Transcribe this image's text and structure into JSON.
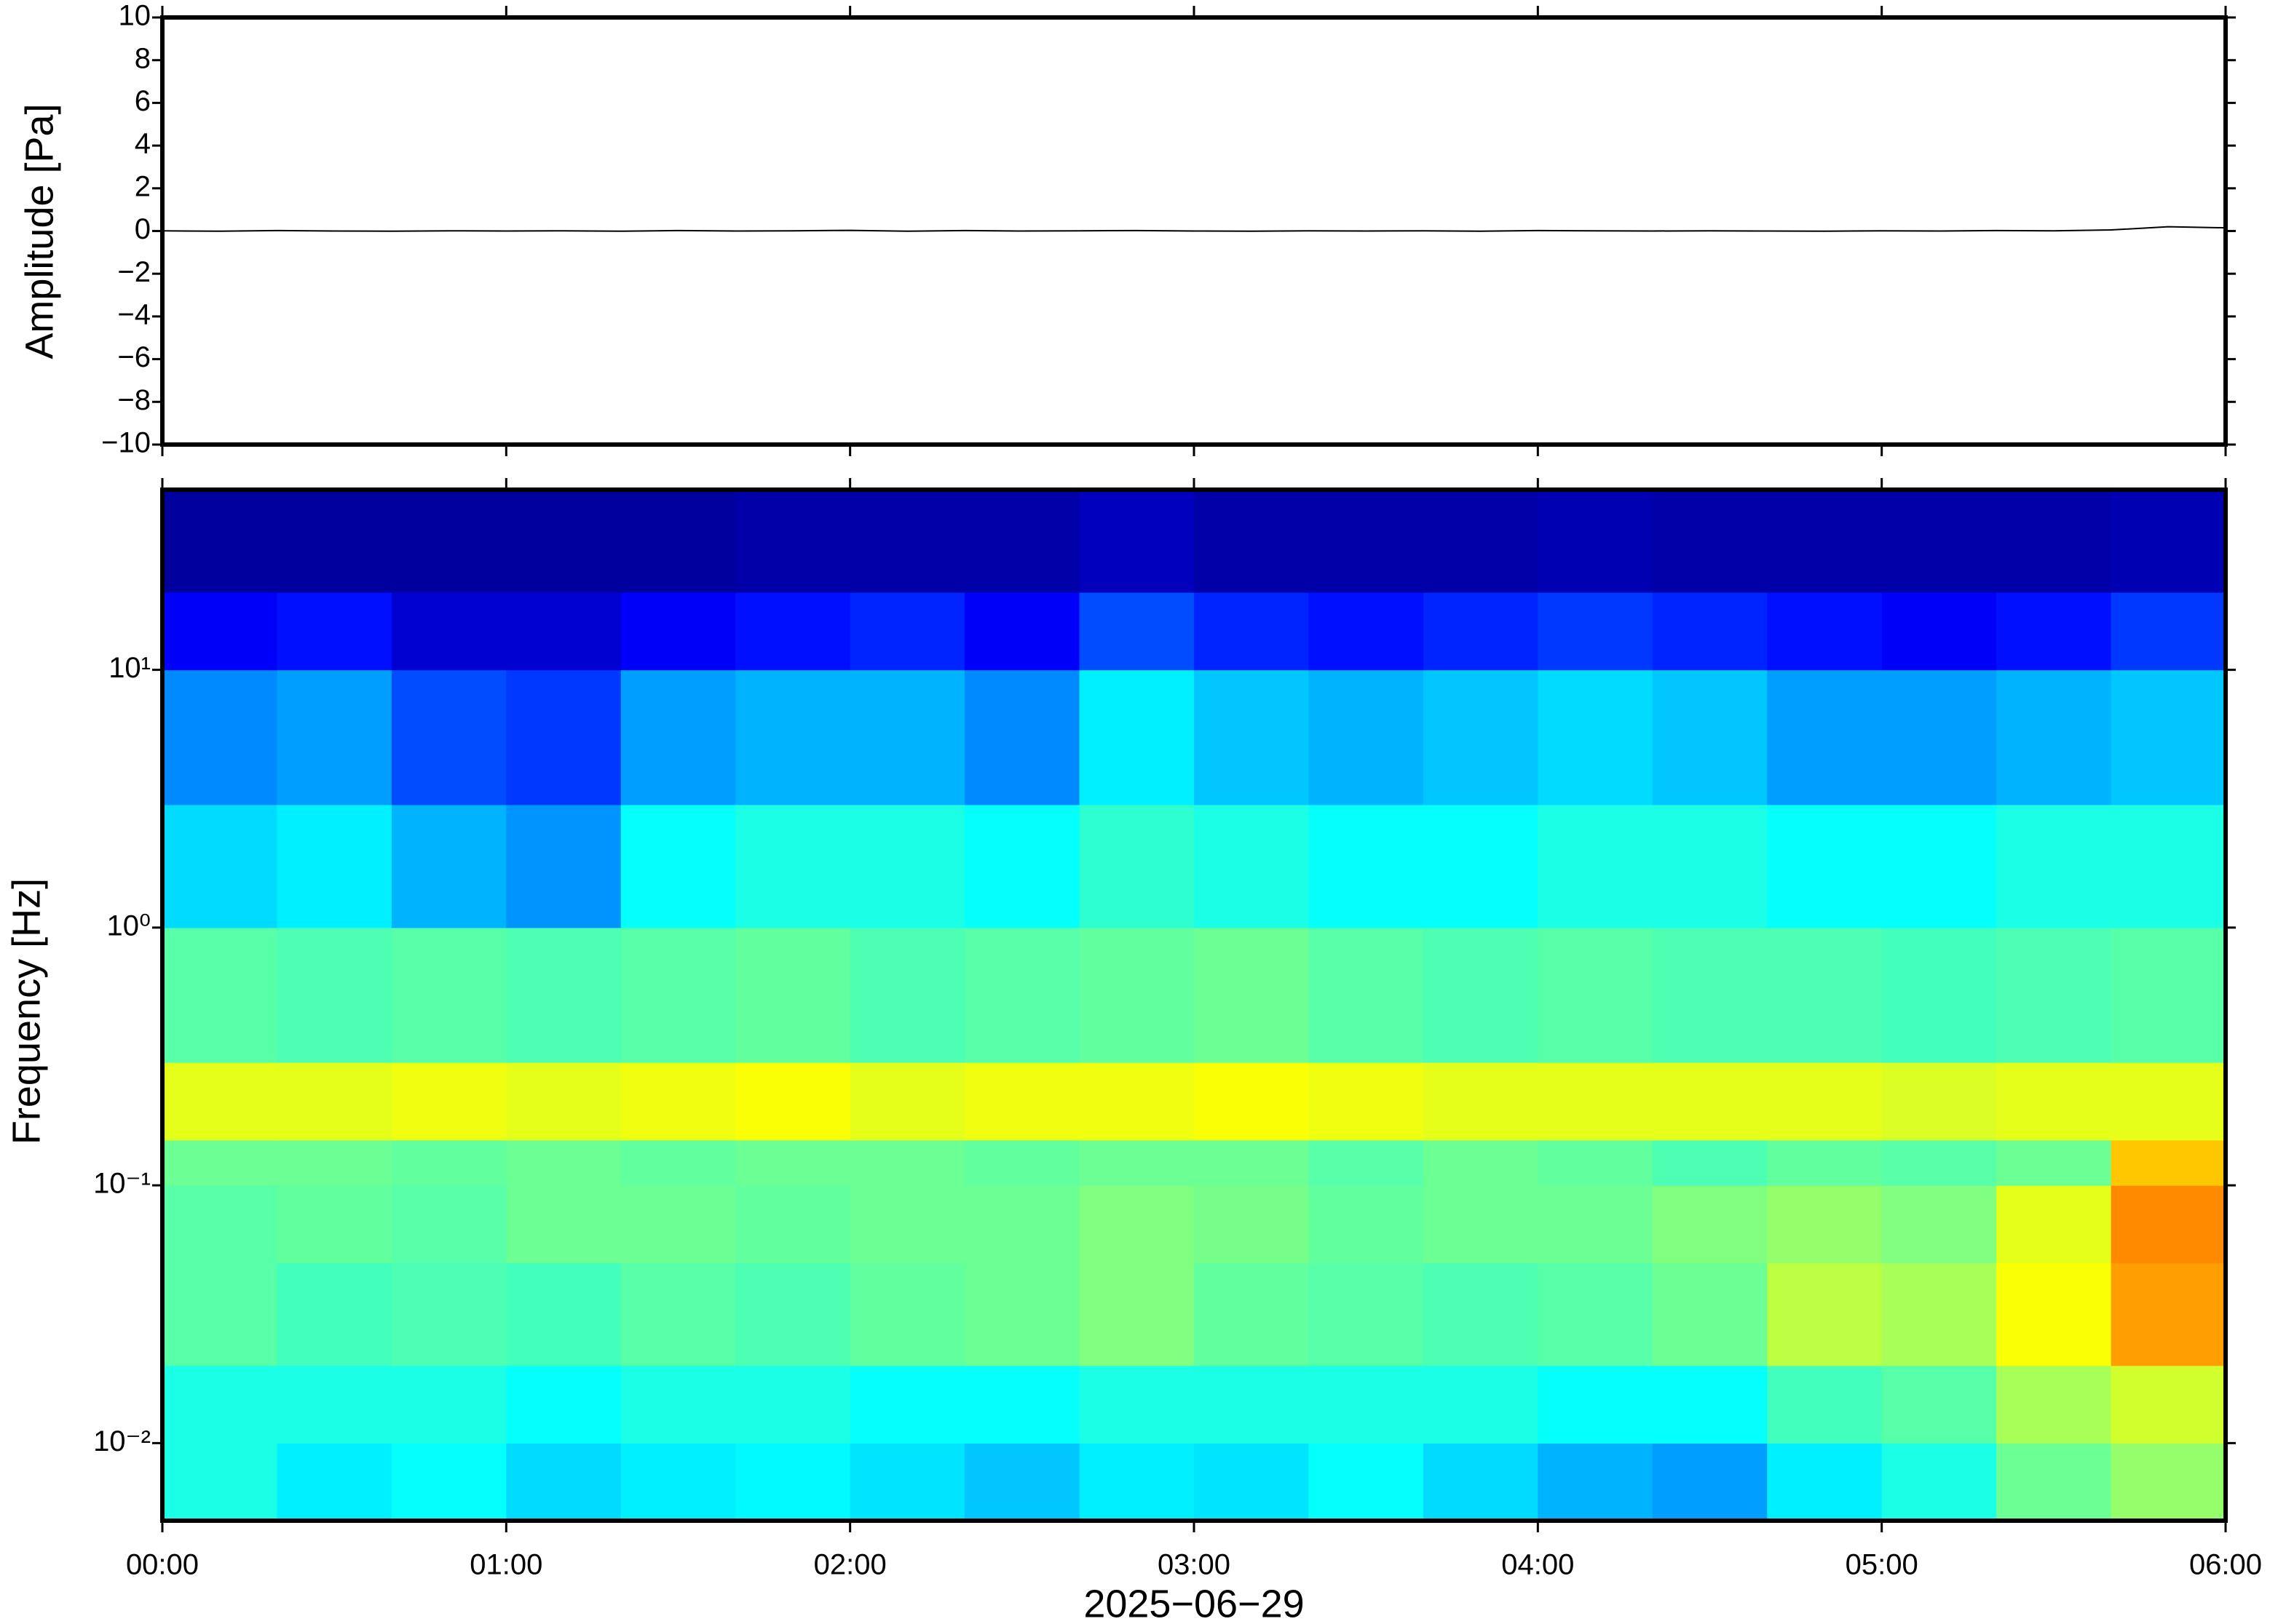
{
  "chart_data": [
    {
      "type": "line",
      "ylabel": "Amplitude [Pa]",
      "color": "#000000",
      "x": [
        "00:00",
        "00:10",
        "00:20",
        "00:30",
        "00:40",
        "00:50",
        "01:00",
        "01:10",
        "01:20",
        "01:30",
        "01:40",
        "01:50",
        "02:00",
        "02:10",
        "02:20",
        "02:30",
        "02:40",
        "02:50",
        "03:00",
        "03:10",
        "03:20",
        "03:30",
        "03:40",
        "03:50",
        "04:00",
        "04:10",
        "04:20",
        "04:30",
        "04:40",
        "04:50",
        "05:00",
        "05:10",
        "05:20",
        "05:30",
        "05:40",
        "05:50",
        "06:00"
      ],
      "values": [
        0.01,
        -0.01,
        0.02,
        0,
        -0.01,
        0.01,
        0,
        0.01,
        -0.01,
        0.02,
        0,
        0.01,
        0.03,
        -0.01,
        0.02,
        0,
        0.01,
        0.02,
        0,
        -0.01,
        0.01,
        0,
        0.01,
        -0.01,
        0.02,
        0.01,
        0,
        0.01,
        0,
        -0.01,
        0.01,
        0,
        0.02,
        0.01,
        0.05,
        0.2,
        0.15
      ],
      "xlim": [
        "00:00",
        "06:00"
      ],
      "ylim": [
        -10,
        10
      ],
      "yticks": [
        {
          "value": -10,
          "label": "−10"
        },
        {
          "value": -8,
          "label": "−8"
        },
        {
          "value": -6,
          "label": "−6"
        },
        {
          "value": -4,
          "label": "−4"
        },
        {
          "value": -2,
          "label": "−2"
        },
        0,
        2,
        4,
        6,
        8,
        10
      ]
    },
    {
      "type": "heatmap",
      "ylabel": "Frequency [Hz]",
      "xlabel": "2025−06−29",
      "colormap": "jet",
      "log_y": true,
      "xlim": [
        "00:00",
        "06:00"
      ],
      "xticks": [
        "00:00",
        "01:00",
        "02:00",
        "03:00",
        "04:00",
        "05:00",
        "06:00"
      ],
      "ylim": [
        0.005,
        50
      ],
      "yticks": [
        {
          "value": 0.01,
          "label": "10⁻²"
        },
        {
          "value": 0.1,
          "label": "10⁻¹"
        },
        {
          "value": 1,
          "label": "10⁰"
        },
        {
          "value": 10,
          "label": "10¹"
        }
      ],
      "xbins": [
        "00:00",
        "00:20",
        "00:40",
        "01:00",
        "01:20",
        "01:40",
        "02:00",
        "02:20",
        "02:40",
        "03:00",
        "03:20",
        "03:40",
        "04:00",
        "04:20",
        "04:40",
        "05:00",
        "05:20",
        "05:40",
        "06:00"
      ],
      "ybins": [
        0.005,
        0.01,
        0.02,
        0.05,
        0.1,
        0.15,
        0.3,
        1,
        3,
        10,
        20,
        50
      ],
      "zlim": [
        0,
        100
      ],
      "z": [
        [
          40,
          36,
          38,
          34,
          36,
          37,
          35,
          32,
          36,
          35,
          38,
          34,
          30,
          28,
          36,
          40,
          48,
          52
        ],
        [
          40,
          40,
          40,
          38,
          40,
          40,
          38,
          38,
          40,
          40,
          40,
          40,
          38,
          38,
          44,
          46,
          54,
          58
        ],
        [
          46,
          44,
          45,
          44,
          46,
          45,
          47,
          48,
          50,
          47,
          46,
          45,
          46,
          48,
          56,
          54,
          62,
          72
        ],
        [
          46,
          47,
          46,
          48,
          48,
          47,
          48,
          48,
          50,
          49,
          47,
          48,
          48,
          50,
          52,
          50,
          60,
          74
        ],
        [
          48,
          48,
          47,
          48,
          47,
          48,
          48,
          47,
          48,
          48,
          46,
          48,
          47,
          45,
          47,
          46,
          48,
          68
        ],
        [
          60,
          60,
          61,
          60,
          61,
          62,
          60,
          61,
          61,
          62,
          61,
          60,
          60,
          60,
          60,
          59,
          60,
          60
        ],
        [
          46,
          45,
          46,
          45,
          46,
          47,
          45,
          46,
          47,
          48,
          46,
          45,
          46,
          45,
          45,
          44,
          45,
          46
        ],
        [
          34,
          36,
          30,
          27,
          38,
          40,
          40,
          38,
          42,
          40,
          38,
          38,
          40,
          40,
          38,
          38,
          40,
          40
        ],
        [
          26,
          28,
          20,
          18,
          28,
          30,
          30,
          26,
          36,
          32,
          30,
          32,
          34,
          32,
          28,
          28,
          30,
          32
        ],
        [
          12,
          14,
          8,
          8,
          12,
          14,
          16,
          12,
          20,
          16,
          14,
          16,
          18,
          16,
          14,
          12,
          14,
          18
        ],
        [
          3,
          3,
          3,
          3,
          3,
          4,
          4,
          4,
          6,
          4,
          4,
          4,
          5,
          4,
          4,
          4,
          4,
          5
        ]
      ]
    }
  ]
}
